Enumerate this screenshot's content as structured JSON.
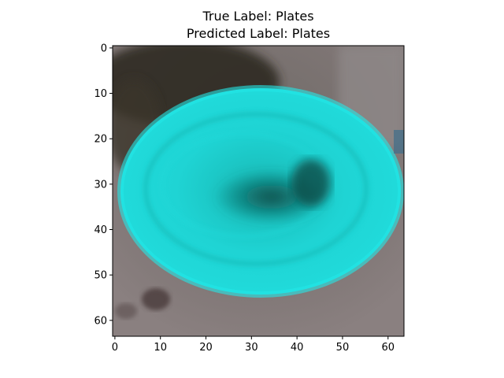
{
  "figure": {
    "title_line1": "True Label: Plates",
    "title_line2": "Predicted Label: Plates",
    "image_description": "low-resolution pixelated photo of a cyan plastic plate on a gray surface",
    "colors": {
      "plate": "#1fd9d9",
      "plate_dark": "#0f6e6a",
      "background_gray": "#7d7574",
      "shadow": "#2f2b24"
    },
    "axes": {
      "x_ticks": [
        "0",
        "10",
        "20",
        "30",
        "40",
        "50",
        "60"
      ],
      "y_ticks": [
        "0",
        "10",
        "20",
        "30",
        "40",
        "50",
        "60"
      ],
      "xlim": [
        -0.5,
        63.5
      ],
      "ylim": [
        63.5,
        -0.5
      ]
    }
  }
}
